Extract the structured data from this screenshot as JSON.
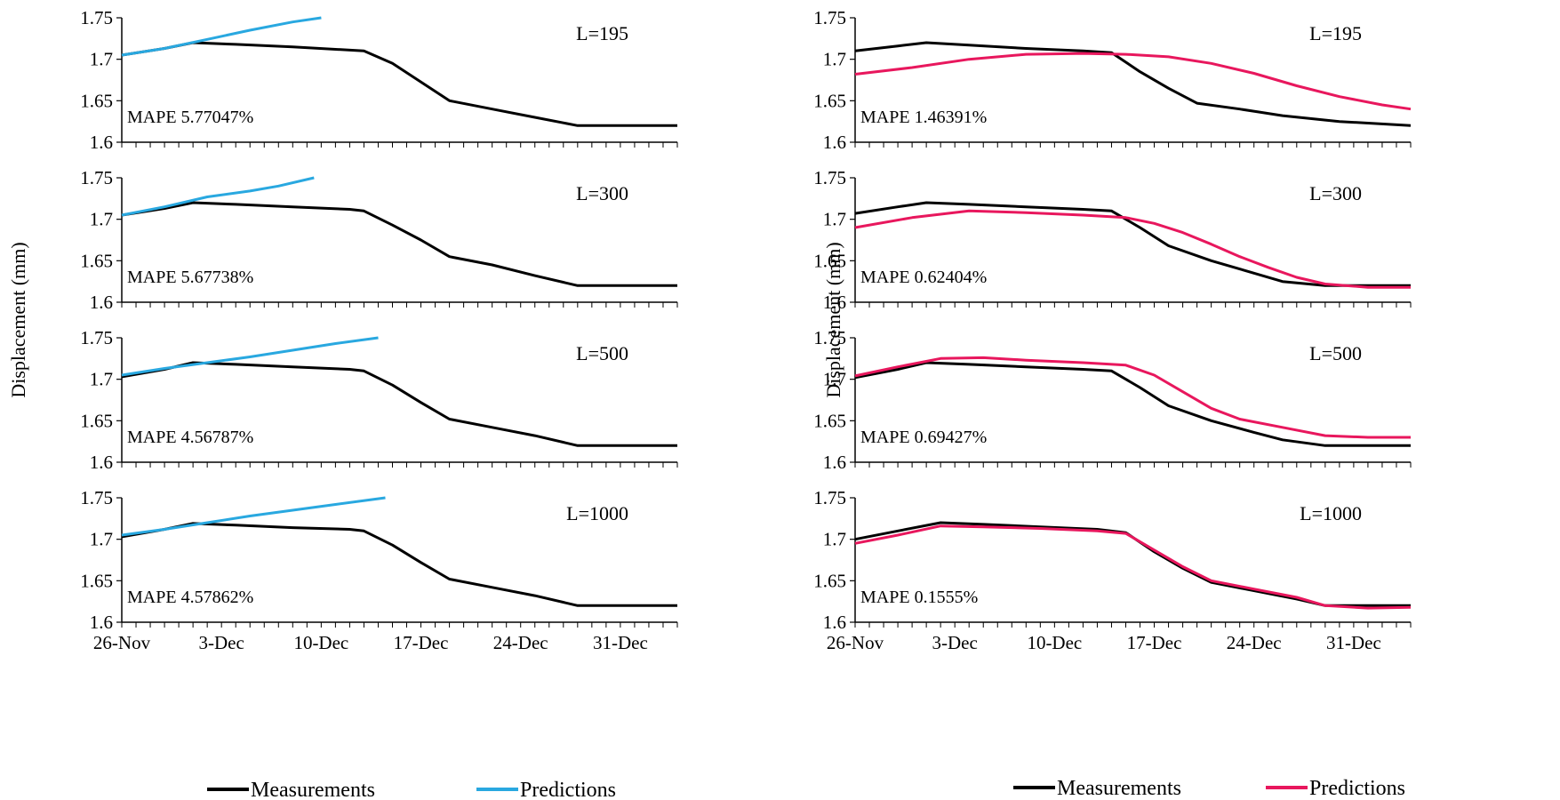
{
  "figure": {
    "y_axis_label": "Displacement  (mm)",
    "x_tick_labels": [
      "26-Nov",
      "3-Dec",
      "10-Dec",
      "17-Dec",
      "24-Dec",
      "31-Dec"
    ],
    "legend": {
      "measurements": "Measurements",
      "predictions": "Predictions"
    }
  },
  "colors": {
    "measurements": "#000000",
    "predictions_left": "#29A8E0",
    "predictions_right": "#E8175D"
  },
  "chart_data": [
    {
      "type": "line",
      "panel": "left-1",
      "label": "L=195",
      "mape": "MAPE  5.77047%",
      "ylim": [
        1.6,
        1.75
      ],
      "yticks": [
        "1.75",
        "1.7",
        "1.65",
        "1.6"
      ],
      "xlim": [
        0,
        39
      ],
      "series": [
        {
          "name": "Measurements",
          "x": [
            0,
            3,
            5,
            8,
            12,
            17,
            19,
            23,
            26,
            29,
            32,
            36,
            39
          ],
          "values": [
            1.705,
            1.713,
            1.72,
            1.718,
            1.715,
            1.71,
            1.695,
            1.65,
            1.64,
            1.63,
            1.62,
            1.62,
            1.62
          ]
        },
        {
          "name": "Predictions",
          "x": [
            0,
            3,
            6,
            9,
            12,
            14
          ],
          "values": [
            1.705,
            1.713,
            1.724,
            1.735,
            1.745,
            1.75
          ]
        }
      ]
    },
    {
      "type": "line",
      "panel": "left-2",
      "label": "L=300",
      "mape": "MAPE  5.67738%",
      "ylim": [
        1.6,
        1.75
      ],
      "yticks": [
        "1.75",
        "1.7",
        "1.65",
        "1.6"
      ],
      "xlim": [
        0,
        39
      ],
      "series": [
        {
          "name": "Measurements",
          "x": [
            0,
            3,
            5,
            8,
            12,
            16,
            17,
            19,
            21,
            23,
            26,
            29,
            32,
            36,
            39
          ],
          "values": [
            1.705,
            1.713,
            1.72,
            1.718,
            1.715,
            1.712,
            1.71,
            1.693,
            1.675,
            1.655,
            1.645,
            1.632,
            1.62,
            1.62,
            1.62
          ]
        },
        {
          "name": "Predictions",
          "x": [
            0,
            3,
            6,
            9,
            11,
            13.5
          ],
          "values": [
            1.705,
            1.715,
            1.727,
            1.734,
            1.74,
            1.75
          ]
        }
      ]
    },
    {
      "type": "line",
      "panel": "left-3",
      "label": "L=500",
      "mape": "MAPE  4.56787%",
      "ylim": [
        1.6,
        1.75
      ],
      "yticks": [
        "1.75",
        "1.7",
        "1.65",
        "1.6"
      ],
      "xlim": [
        0,
        39
      ],
      "series": [
        {
          "name": "Measurements",
          "x": [
            0,
            3,
            5,
            8,
            12,
            16,
            17,
            19,
            21,
            23,
            26,
            29,
            32,
            36,
            39
          ],
          "values": [
            1.703,
            1.712,
            1.72,
            1.718,
            1.715,
            1.712,
            1.71,
            1.693,
            1.672,
            1.652,
            1.642,
            1.632,
            1.62,
            1.62,
            1.62
          ]
        },
        {
          "name": "Predictions",
          "x": [
            0,
            3,
            6,
            9,
            12,
            15,
            18
          ],
          "values": [
            1.705,
            1.713,
            1.72,
            1.727,
            1.735,
            1.743,
            1.75
          ]
        }
      ]
    },
    {
      "type": "line",
      "panel": "left-4",
      "label": "L=1000",
      "mape": "MAPE  4.57862%",
      "ylim": [
        1.6,
        1.75
      ],
      "yticks": [
        "1.75",
        "1.7",
        "1.65",
        "1.6"
      ],
      "xlim": [
        0,
        39
      ],
      "series": [
        {
          "name": "Measurements",
          "x": [
            0,
            3,
            5,
            8,
            12,
            16,
            17,
            19,
            21,
            23,
            26,
            29,
            32,
            36,
            39
          ],
          "values": [
            1.703,
            1.712,
            1.719,
            1.717,
            1.714,
            1.712,
            1.71,
            1.693,
            1.672,
            1.652,
            1.642,
            1.632,
            1.62,
            1.62,
            1.62
          ]
        },
        {
          "name": "Predictions",
          "x": [
            0,
            3,
            6,
            9,
            12,
            15,
            18.5
          ],
          "values": [
            1.705,
            1.712,
            1.72,
            1.728,
            1.735,
            1.742,
            1.75
          ]
        }
      ]
    },
    {
      "type": "line",
      "panel": "right-1",
      "label": "L=195",
      "mape": "MAPE 1.46391%",
      "ylim": [
        1.6,
        1.75
      ],
      "yticks": [
        "1.75",
        "1.7",
        "1.65",
        "1.6"
      ],
      "xlim": [
        0,
        39
      ],
      "series": [
        {
          "name": "Measurements",
          "x": [
            0,
            3,
            5,
            8,
            12,
            16,
            18,
            20,
            22,
            24,
            27,
            30,
            34,
            39
          ],
          "values": [
            1.71,
            1.716,
            1.72,
            1.717,
            1.713,
            1.71,
            1.708,
            1.685,
            1.665,
            1.647,
            1.64,
            1.632,
            1.625,
            1.62
          ]
        },
        {
          "name": "Predictions",
          "x": [
            0,
            4,
            8,
            12,
            16,
            19,
            22,
            25,
            28,
            31,
            34,
            37,
            39
          ],
          "values": [
            1.682,
            1.69,
            1.7,
            1.706,
            1.707,
            1.706,
            1.703,
            1.695,
            1.683,
            1.668,
            1.655,
            1.645,
            1.64
          ]
        }
      ]
    },
    {
      "type": "line",
      "panel": "right-2",
      "label": "L=300",
      "mape": "MAPE  0.62404%",
      "ylim": [
        1.6,
        1.75
      ],
      "yticks": [
        "1.75",
        "1.7",
        "1.65",
        "1.6"
      ],
      "xlim": [
        0,
        39
      ],
      "series": [
        {
          "name": "Measurements",
          "x": [
            0,
            3,
            5,
            8,
            12,
            16,
            18,
            20,
            22,
            25,
            28,
            30,
            33,
            36,
            39
          ],
          "values": [
            1.707,
            1.715,
            1.72,
            1.718,
            1.715,
            1.712,
            1.71,
            1.69,
            1.668,
            1.65,
            1.635,
            1.625,
            1.62,
            1.62,
            1.62
          ]
        },
        {
          "name": "Predictions",
          "x": [
            0,
            4,
            8,
            12,
            16,
            19,
            21,
            23,
            25,
            27,
            29,
            31,
            33,
            36,
            39
          ],
          "values": [
            1.69,
            1.702,
            1.71,
            1.708,
            1.705,
            1.702,
            1.695,
            1.684,
            1.67,
            1.655,
            1.642,
            1.63,
            1.622,
            1.618,
            1.618
          ]
        }
      ]
    },
    {
      "type": "line",
      "panel": "right-3",
      "label": "L=500",
      "mape": "MAPE 0.69427%",
      "ylim": [
        1.6,
        1.75
      ],
      "yticks": [
        "1.75",
        "1.7",
        "1.65",
        "1.6"
      ],
      "xlim": [
        0,
        39
      ],
      "series": [
        {
          "name": "Measurements",
          "x": [
            0,
            3,
            5,
            8,
            12,
            16,
            18,
            20,
            22,
            25,
            28,
            30,
            33,
            36,
            39
          ],
          "values": [
            1.702,
            1.712,
            1.72,
            1.718,
            1.715,
            1.712,
            1.71,
            1.69,
            1.668,
            1.65,
            1.636,
            1.627,
            1.62,
            1.62,
            1.62
          ]
        },
        {
          "name": "Predictions",
          "x": [
            0,
            3,
            6,
            9,
            12,
            16,
            19,
            21,
            23,
            25,
            27,
            30,
            33,
            36,
            39
          ],
          "values": [
            1.704,
            1.715,
            1.725,
            1.726,
            1.723,
            1.72,
            1.717,
            1.705,
            1.685,
            1.665,
            1.652,
            1.642,
            1.632,
            1.63,
            1.63
          ]
        }
      ]
    },
    {
      "type": "line",
      "panel": "right-4",
      "label": "L=1000",
      "mape": "MAPE 0.1555%",
      "ylim": [
        1.6,
        1.75
      ],
      "yticks": [
        "1.75",
        "1.7",
        "1.65",
        "1.6"
      ],
      "xlim": [
        0,
        39
      ],
      "series": [
        {
          "name": "Measurements",
          "x": [
            0,
            3,
            6,
            9,
            13,
            17,
            19,
            21,
            23,
            25,
            28,
            31,
            33,
            36,
            39
          ],
          "values": [
            1.7,
            1.71,
            1.72,
            1.718,
            1.715,
            1.712,
            1.708,
            1.685,
            1.665,
            1.648,
            1.638,
            1.628,
            1.62,
            1.62,
            1.62
          ]
        },
        {
          "name": "Predictions",
          "x": [
            0,
            3,
            6,
            9,
            13,
            17,
            19,
            21,
            23,
            25,
            28,
            31,
            33,
            36,
            39
          ],
          "values": [
            1.695,
            1.705,
            1.716,
            1.715,
            1.713,
            1.71,
            1.707,
            1.687,
            1.667,
            1.65,
            1.64,
            1.63,
            1.62,
            1.617,
            1.618
          ]
        }
      ]
    }
  ]
}
